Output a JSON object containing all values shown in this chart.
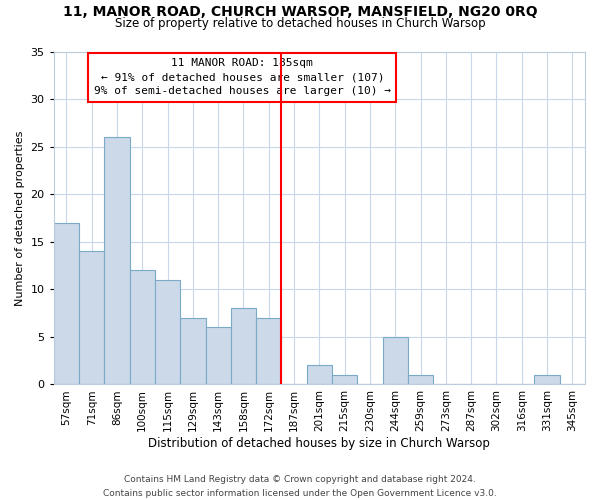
{
  "title": "11, MANOR ROAD, CHURCH WARSOP, MANSFIELD, NG20 0RQ",
  "subtitle": "Size of property relative to detached houses in Church Warsop",
  "xlabel": "Distribution of detached houses by size in Church Warsop",
  "ylabel": "Number of detached properties",
  "bar_labels": [
    "57sqm",
    "71sqm",
    "86sqm",
    "100sqm",
    "115sqm",
    "129sqm",
    "143sqm",
    "158sqm",
    "172sqm",
    "187sqm",
    "201sqm",
    "215sqm",
    "230sqm",
    "244sqm",
    "259sqm",
    "273sqm",
    "287sqm",
    "302sqm",
    "316sqm",
    "331sqm",
    "345sqm"
  ],
  "bar_heights": [
    17,
    14,
    26,
    12,
    11,
    7,
    6,
    8,
    7,
    0,
    2,
    1,
    0,
    5,
    1,
    0,
    0,
    0,
    0,
    1,
    0
  ],
  "bar_color": "#ccd9e8",
  "bar_edge_color": "#7aaac8",
  "ref_line_x": 8.5,
  "annotation_line1": "11 MANOR ROAD: 185sqm",
  "annotation_line2": "← 91% of detached houses are smaller (107)",
  "annotation_line3": "9% of semi-detached houses are larger (10) →",
  "ylim": [
    0,
    35
  ],
  "yticks": [
    0,
    5,
    10,
    15,
    20,
    25,
    30,
    35
  ],
  "footer_line1": "Contains HM Land Registry data © Crown copyright and database right 2024.",
  "footer_line2": "Contains public sector information licensed under the Open Government Licence v3.0.",
  "background_color": "#ffffff",
  "grid_color": "#c8d8e8"
}
